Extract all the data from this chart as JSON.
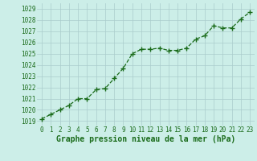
{
  "x": [
    0,
    1,
    2,
    3,
    4,
    5,
    6,
    7,
    8,
    9,
    10,
    11,
    12,
    13,
    14,
    15,
    16,
    17,
    18,
    19,
    20,
    21,
    22,
    23
  ],
  "y": [
    1019.2,
    1019.6,
    1020.0,
    1020.4,
    1021.0,
    1021.0,
    1021.8,
    1021.9,
    1022.8,
    1023.7,
    1025.0,
    1025.4,
    1025.4,
    1025.5,
    1025.3,
    1025.3,
    1025.5,
    1026.3,
    1026.6,
    1027.5,
    1027.3,
    1027.3,
    1028.1,
    1028.7
  ],
  "line_color": "#1a6b1a",
  "marker": "+",
  "marker_size": 4,
  "bg_color": "#cceee8",
  "grid_color": "#aacccc",
  "title": "Graphe pression niveau de la mer (hPa)",
  "xlabel_ticks": [
    "0",
    "1",
    "2",
    "3",
    "4",
    "5",
    "6",
    "7",
    "8",
    "9",
    "10",
    "11",
    "12",
    "13",
    "14",
    "15",
    "16",
    "17",
    "18",
    "19",
    "20",
    "21",
    "22",
    "23"
  ],
  "yticks": [
    1019,
    1020,
    1021,
    1022,
    1023,
    1024,
    1025,
    1026,
    1027,
    1028,
    1029
  ],
  "ylim": [
    1018.6,
    1029.5
  ],
  "xlim": [
    -0.5,
    23.5
  ],
  "tick_color": "#1a6b1a",
  "tick_fontsize": 5.5,
  "title_fontsize": 7.0,
  "linewidth": 0.9
}
